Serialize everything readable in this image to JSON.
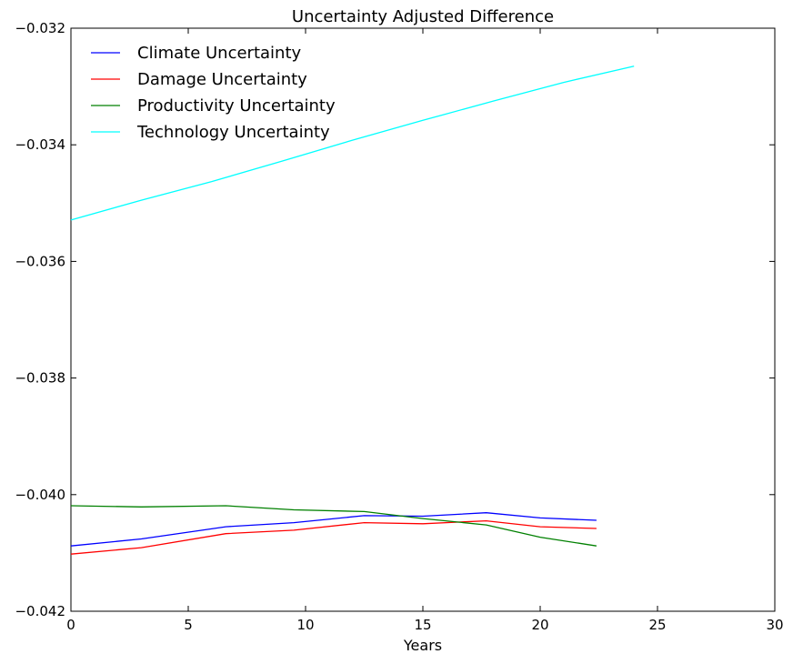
{
  "chart_data": {
    "type": "line",
    "title": "Uncertainty Adjusted Difference",
    "xlabel": "Years",
    "ylabel": "",
    "xlim": [
      0,
      30
    ],
    "ylim": [
      -0.042,
      -0.032
    ],
    "xticks": [
      0,
      5,
      10,
      15,
      20,
      25,
      30
    ],
    "yticks": [
      -0.042,
      -0.04,
      -0.038,
      -0.036,
      -0.034,
      -0.032
    ],
    "ytick_labels": [
      "−0.042",
      "−0.040",
      "−0.038",
      "−0.036",
      "−0.034",
      "−0.032"
    ],
    "grid": false,
    "legend_position": "top-left",
    "series": [
      {
        "name": "Climate Uncertainty",
        "color": "#0000ff",
        "x": [
          0,
          3,
          6.6,
          9.5,
          12.5,
          15,
          17.7,
          20,
          22.4
        ],
        "y": [
          -0.04088,
          -0.04076,
          -0.04055,
          -0.04048,
          -0.04036,
          -0.04037,
          -0.04031,
          -0.0404,
          -0.04044
        ]
      },
      {
        "name": "Damage Uncertainty",
        "color": "#ff0000",
        "x": [
          0,
          3,
          6.6,
          9.5,
          12.5,
          15,
          17.7,
          20,
          22.4
        ],
        "y": [
          -0.04102,
          -0.04091,
          -0.04067,
          -0.04061,
          -0.04048,
          -0.0405,
          -0.04045,
          -0.04055,
          -0.04058
        ]
      },
      {
        "name": "Productivity Uncertainty",
        "color": "#008000",
        "x": [
          0,
          3,
          6.6,
          9.5,
          12.5,
          15,
          17.7,
          20,
          22.4
        ],
        "y": [
          -0.04019,
          -0.04021,
          -0.04019,
          -0.04026,
          -0.04029,
          -0.04041,
          -0.04052,
          -0.04073,
          -0.04088
        ]
      },
      {
        "name": "Technology Uncertainty",
        "color": "#00ffff",
        "x": [
          0,
          3,
          6,
          9,
          12,
          15,
          18,
          21,
          24
        ],
        "y": [
          -0.03529,
          -0.03495,
          -0.03463,
          -0.03428,
          -0.03392,
          -0.03358,
          -0.03325,
          -0.03293,
          -0.03265
        ]
      }
    ]
  }
}
